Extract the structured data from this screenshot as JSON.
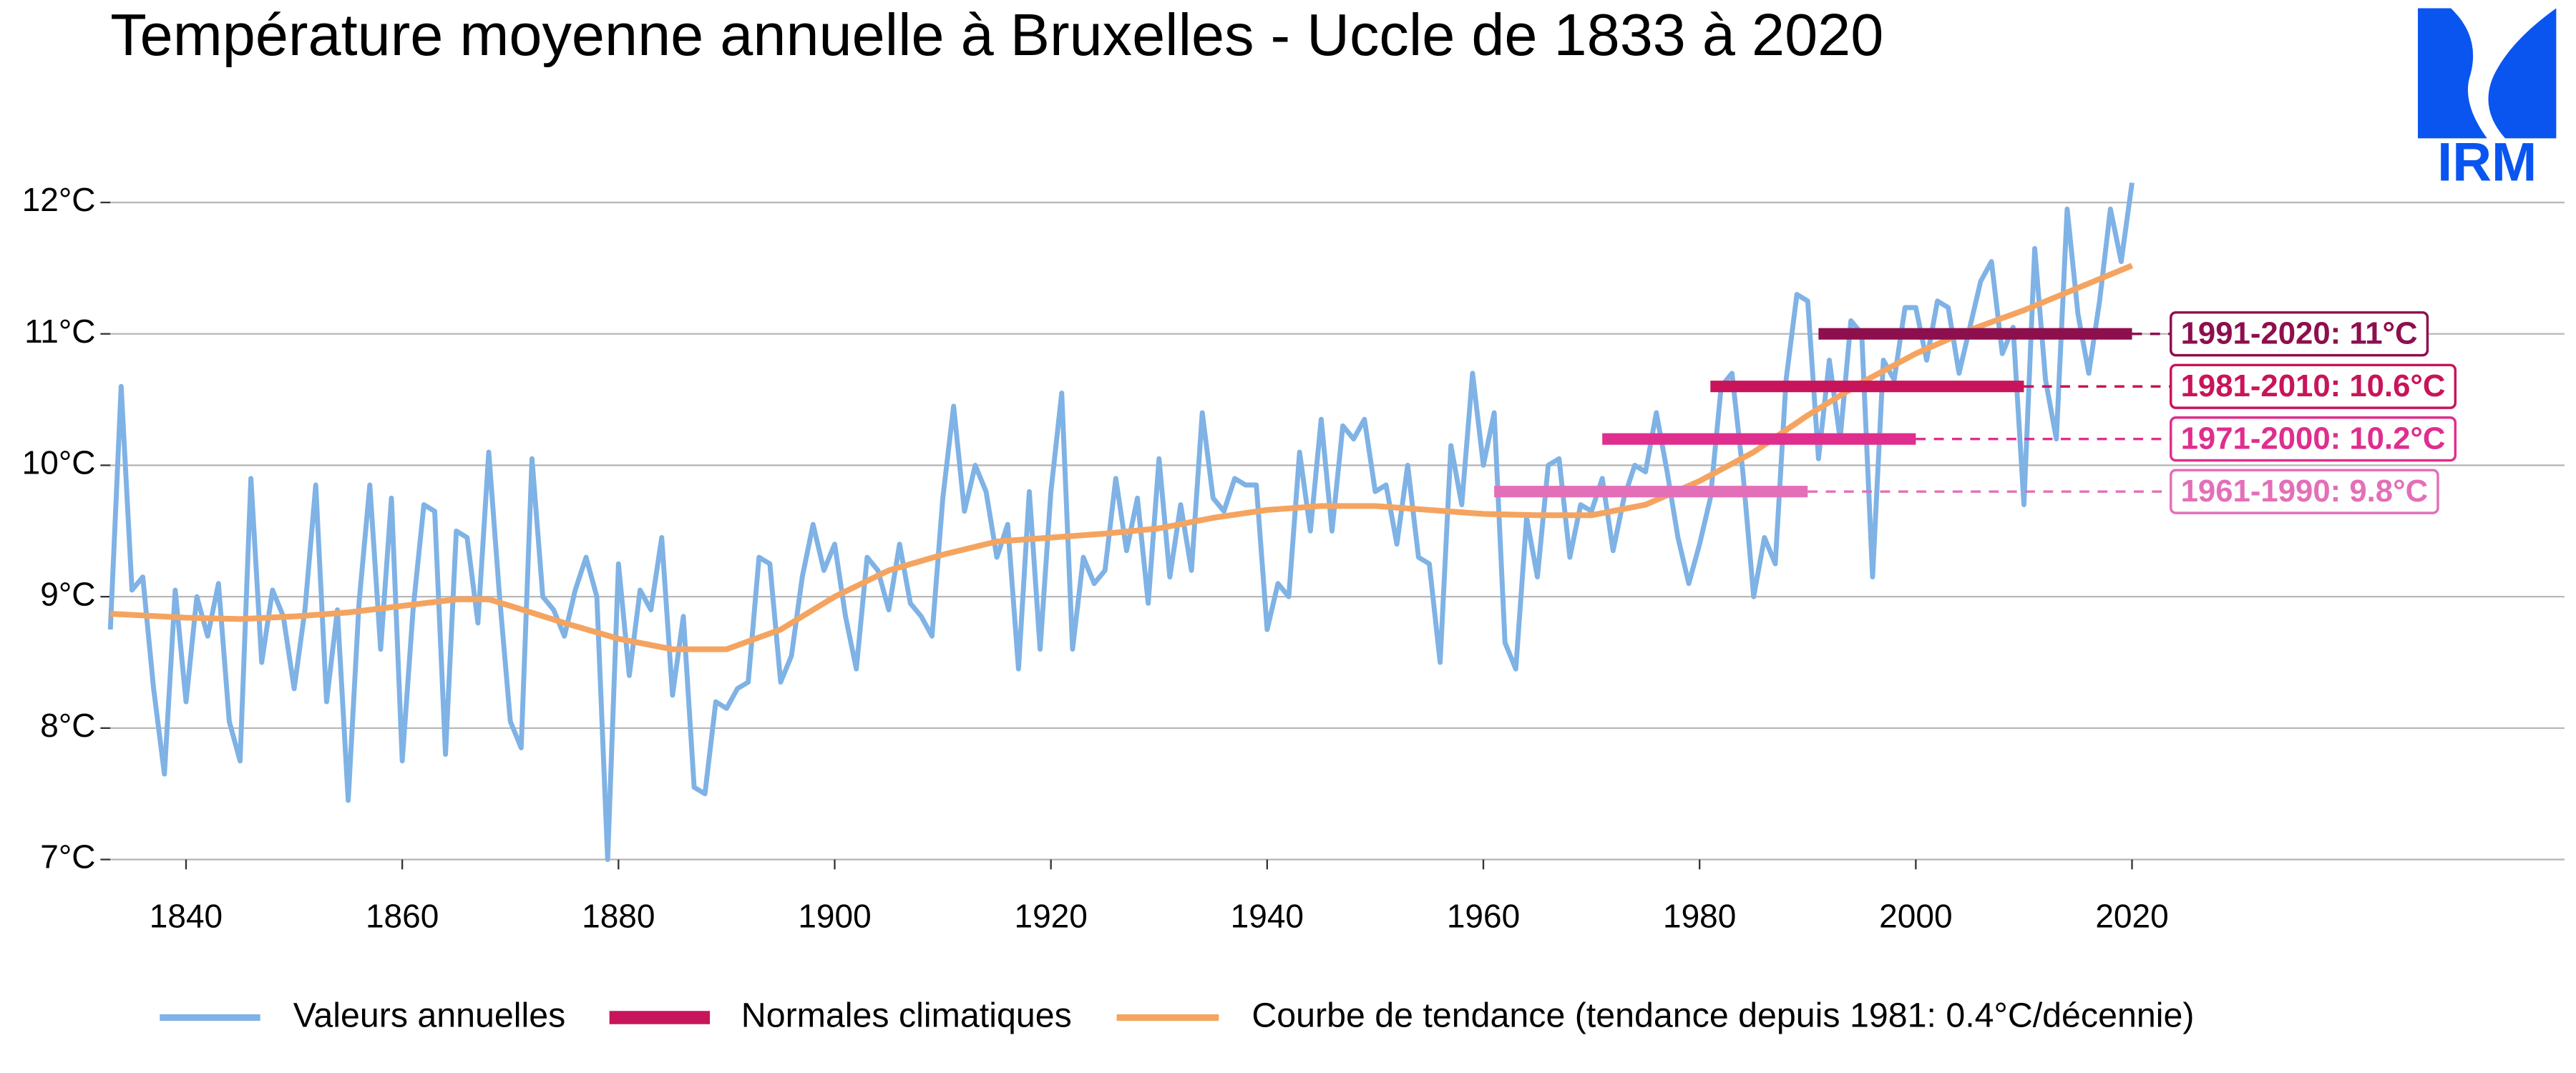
{
  "logo_text": "IRM",
  "chart_data": {
    "type": "line",
    "title": "Température moyenne annuelle à Bruxelles - Uccle de 1833 à 2020",
    "xlim": [
      1833,
      2060
    ],
    "xticks": [
      1840,
      1860,
      1880,
      1900,
      1920,
      1940,
      1960,
      1980,
      2000,
      2020
    ],
    "ylim": [
      7,
      12.2
    ],
    "yticks": [
      {
        "value": 7,
        "label": "7°C"
      },
      {
        "value": 8,
        "label": "8°C"
      },
      {
        "value": 9,
        "label": "9°C"
      },
      {
        "value": 10,
        "label": "10°C"
      },
      {
        "value": 11,
        "label": "11°C"
      },
      {
        "value": 12,
        "label": "12°C"
      }
    ],
    "grid": true,
    "legend": "bottom",
    "series": [
      {
        "name": "Valeurs annuelles",
        "color": "#7fb2e5",
        "x": [
          1833,
          1834,
          1835,
          1836,
          1837,
          1838,
          1839,
          1840,
          1841,
          1842,
          1843,
          1844,
          1845,
          1846,
          1847,
          1848,
          1849,
          1850,
          1851,
          1852,
          1853,
          1854,
          1855,
          1856,
          1857,
          1858,
          1859,
          1860,
          1861,
          1862,
          1863,
          1864,
          1865,
          1866,
          1867,
          1868,
          1869,
          1870,
          1871,
          1872,
          1873,
          1874,
          1875,
          1876,
          1877,
          1878,
          1879,
          1880,
          1881,
          1882,
          1883,
          1884,
          1885,
          1886,
          1887,
          1888,
          1889,
          1890,
          1891,
          1892,
          1893,
          1894,
          1895,
          1896,
          1897,
          1898,
          1899,
          1900,
          1901,
          1902,
          1903,
          1904,
          1905,
          1906,
          1907,
          1908,
          1909,
          1910,
          1911,
          1912,
          1913,
          1914,
          1915,
          1916,
          1917,
          1918,
          1919,
          1920,
          1921,
          1922,
          1923,
          1924,
          1925,
          1926,
          1927,
          1928,
          1929,
          1930,
          1931,
          1932,
          1933,
          1934,
          1935,
          1936,
          1937,
          1938,
          1939,
          1940,
          1941,
          1942,
          1943,
          1944,
          1945,
          1946,
          1947,
          1948,
          1949,
          1950,
          1951,
          1952,
          1953,
          1954,
          1955,
          1956,
          1957,
          1958,
          1959,
          1960,
          1961,
          1962,
          1963,
          1964,
          1965,
          1966,
          1967,
          1968,
          1969,
          1970,
          1971,
          1972,
          1973,
          1974,
          1975,
          1976,
          1977,
          1978,
          1979,
          1980,
          1981,
          1982,
          1983,
          1984,
          1985,
          1986,
          1987,
          1988,
          1989,
          1990,
          1991,
          1992,
          1993,
          1994,
          1995,
          1996,
          1997,
          1998,
          1999,
          2000,
          2001,
          2002,
          2003,
          2004,
          2005,
          2006,
          2007,
          2008,
          2009,
          2010,
          2011,
          2012,
          2013,
          2014,
          2015,
          2016,
          2017,
          2018,
          2019,
          2020
        ],
        "values": [
          8.75,
          10.6,
          9.05,
          9.15,
          8.3,
          7.65,
          9.05,
          8.2,
          9.0,
          8.7,
          9.1,
          8.05,
          7.75,
          9.9,
          8.5,
          9.05,
          8.85,
          8.3,
          8.9,
          9.85,
          8.2,
          8.9,
          7.45,
          8.95,
          9.85,
          8.6,
          9.75,
          7.75,
          8.9,
          9.7,
          9.65,
          7.8,
          9.5,
          9.45,
          8.8,
          10.1,
          9.0,
          8.05,
          7.85,
          10.05,
          9.0,
          8.9,
          8.7,
          9.05,
          9.3,
          9.0,
          7.0,
          9.25,
          8.4,
          9.05,
          8.9,
          9.45,
          8.25,
          8.85,
          7.55,
          7.5,
          8.2,
          8.15,
          8.3,
          8.35,
          9.3,
          9.25,
          8.35,
          8.55,
          9.15,
          9.55,
          9.2,
          9.4,
          8.85,
          8.45,
          9.3,
          9.2,
          8.9,
          9.4,
          8.95,
          8.85,
          8.7,
          9.75,
          10.45,
          9.65,
          10.0,
          9.8,
          9.3,
          9.55,
          8.45,
          9.8,
          8.6,
          9.8,
          10.55,
          8.6,
          9.3,
          9.1,
          9.2,
          9.9,
          9.35,
          9.75,
          8.95,
          10.05,
          9.15,
          9.7,
          9.2,
          10.4,
          9.75,
          9.65,
          9.9,
          9.85,
          9.85,
          8.75,
          9.1,
          9.0,
          10.1,
          9.5,
          10.35,
          9.5,
          10.3,
          10.2,
          10.35,
          9.8,
          9.85,
          9.4,
          10.0,
          9.3,
          9.25,
          8.5,
          10.15,
          9.7,
          10.7,
          10.0,
          10.4,
          8.65,
          8.45,
          9.6,
          9.15,
          10.0,
          10.05,
          9.3,
          9.7,
          9.65,
          9.9,
          9.35,
          9.75,
          10.0,
          9.95,
          10.4,
          9.95,
          9.45,
          9.1,
          9.4,
          9.75,
          10.6,
          10.7,
          9.95,
          9.0,
          9.45,
          9.25,
          10.65,
          11.3,
          11.25,
          10.05,
          10.8,
          10.2,
          11.1,
          11.0,
          9.15,
          10.8,
          10.65,
          11.2,
          11.2,
          10.8,
          11.25,
          11.2,
          10.7,
          11.05,
          11.4,
          11.55,
          10.85,
          11.05,
          9.7,
          11.65,
          10.65,
          10.2,
          11.95,
          11.15,
          10.7,
          11.25,
          11.95,
          11.55,
          12.15
        ]
      },
      {
        "name": "Courbe de tendance (tendance depuis 1981: 0.4°C/décennie)",
        "color": "#f4a460",
        "x": [
          1833,
          1840,
          1845,
          1850,
          1855,
          1860,
          1865,
          1868,
          1870,
          1875,
          1880,
          1885,
          1890,
          1895,
          1900,
          1905,
          1910,
          1915,
          1920,
          1925,
          1930,
          1935,
          1940,
          1945,
          1950,
          1955,
          1960,
          1965,
          1970,
          1975,
          1980,
          1985,
          1990,
          1995,
          2000,
          2005,
          2010,
          2015,
          2020
        ],
        "values": [
          8.87,
          8.84,
          8.83,
          8.85,
          8.88,
          8.93,
          8.98,
          8.98,
          8.93,
          8.8,
          8.68,
          8.6,
          8.6,
          8.75,
          9.0,
          9.2,
          9.32,
          9.42,
          9.45,
          9.48,
          9.52,
          9.6,
          9.66,
          9.69,
          9.69,
          9.66,
          9.63,
          9.62,
          9.62,
          9.7,
          9.88,
          10.1,
          10.38,
          10.63,
          10.85,
          11.03,
          11.18,
          11.35,
          11.52
        ]
      }
    ],
    "normals": {
      "name": "Normales climatiques",
      "color": "#c8145a",
      "items": [
        {
          "start": 1991,
          "end": 2020,
          "value": 11,
          "label": "1991-2020: 11°C",
          "color": "#8e0f4d"
        },
        {
          "start": 1981,
          "end": 2010,
          "value": 10.6,
          "label": "1981-2010: 10.6°C",
          "color": "#c8145a"
        },
        {
          "start": 1971,
          "end": 2000,
          "value": 10.2,
          "label": "1971-2000: 10.2°C",
          "color": "#df2e8e"
        },
        {
          "start": 1961,
          "end": 1990,
          "value": 9.8,
          "label": "1961-1990: 9.8°C",
          "color": "#e36fb8"
        }
      ]
    }
  }
}
